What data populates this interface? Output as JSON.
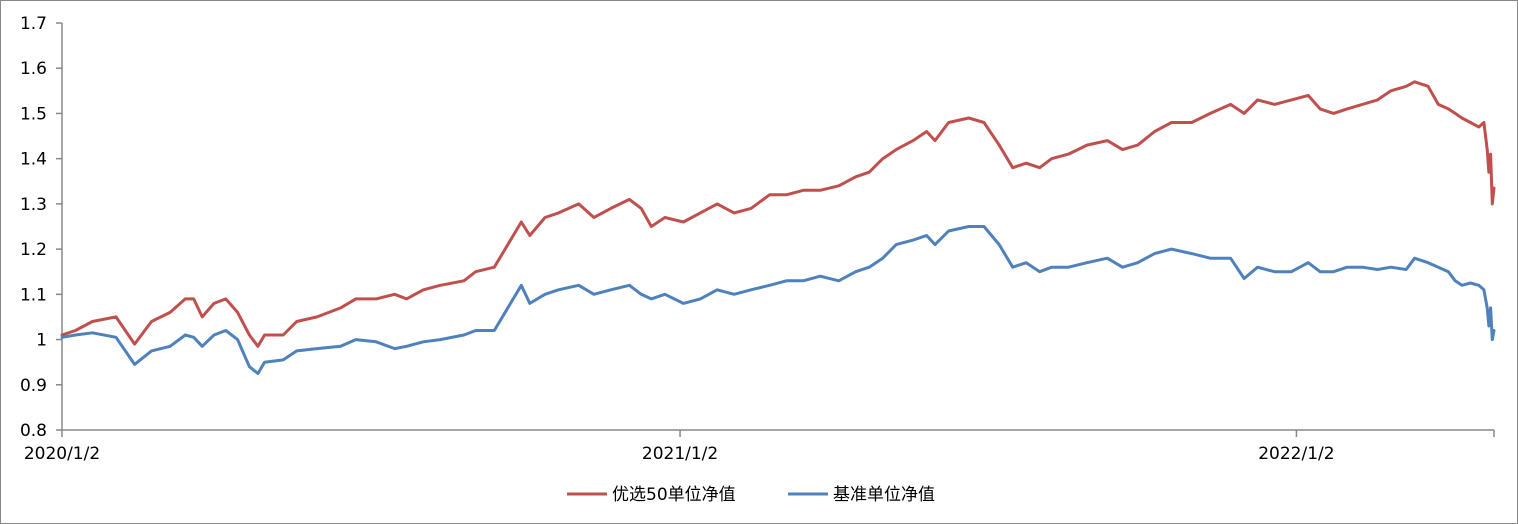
{
  "chart_data": {
    "type": "line",
    "title": "",
    "xlabel": "",
    "ylabel": "",
    "ylim": [
      0.8,
      1.7
    ],
    "y_ticks": [
      "0.8",
      "0.9",
      "1",
      "1.1",
      "1.2",
      "1.3",
      "1.4",
      "1.5",
      "1.6",
      "1.7"
    ],
    "x_ticks": [
      {
        "label": "2020/1/2",
        "date": "2020-01-02"
      },
      {
        "label": "2021/1/2",
        "date": "2021-01-02"
      },
      {
        "label": "2022/1/2",
        "date": "2022-01-02"
      }
    ],
    "xlim": [
      "2020-01-02",
      "2022-04-29"
    ],
    "grid": false,
    "legend_position": "bottom",
    "series": [
      {
        "name": "优选50单位净值",
        "color": "#C0504D",
        "points": [
          [
            "2020-01-02",
            1.01
          ],
          [
            "2020-01-10",
            1.02
          ],
          [
            "2020-01-20",
            1.04
          ],
          [
            "2020-02-03",
            1.05
          ],
          [
            "2020-02-14",
            0.99
          ],
          [
            "2020-02-24",
            1.04
          ],
          [
            "2020-03-06",
            1.06
          ],
          [
            "2020-03-15",
            1.09
          ],
          [
            "2020-03-20",
            1.09
          ],
          [
            "2020-03-25",
            1.05
          ],
          [
            "2020-04-01",
            1.08
          ],
          [
            "2020-04-08",
            1.09
          ],
          [
            "2020-04-15",
            1.06
          ],
          [
            "2020-04-22",
            1.01
          ],
          [
            "2020-04-27",
            0.985
          ],
          [
            "2020-05-01",
            1.01
          ],
          [
            "2020-05-12",
            1.01
          ],
          [
            "2020-05-20",
            1.04
          ],
          [
            "2020-06-01",
            1.05
          ],
          [
            "2020-06-15",
            1.07
          ],
          [
            "2020-06-24",
            1.09
          ],
          [
            "2020-07-06",
            1.09
          ],
          [
            "2020-07-17",
            1.1
          ],
          [
            "2020-07-24",
            1.09
          ],
          [
            "2020-08-03",
            1.11
          ],
          [
            "2020-08-13",
            1.12
          ],
          [
            "2020-08-27",
            1.13
          ],
          [
            "2020-09-03",
            1.15
          ],
          [
            "2020-09-14",
            1.16
          ],
          [
            "2020-09-22",
            1.21
          ],
          [
            "2020-09-30",
            1.26
          ],
          [
            "2020-10-05",
            1.23
          ],
          [
            "2020-10-14",
            1.27
          ],
          [
            "2020-10-22",
            1.28
          ],
          [
            "2020-11-03",
            1.3
          ],
          [
            "2020-11-12",
            1.27
          ],
          [
            "2020-11-22",
            1.29
          ],
          [
            "2020-12-03",
            1.31
          ],
          [
            "2020-12-10",
            1.29
          ],
          [
            "2020-12-16",
            1.25
          ],
          [
            "2020-12-24",
            1.27
          ],
          [
            "2021-01-04",
            1.26
          ],
          [
            "2021-01-14",
            1.28
          ],
          [
            "2021-01-24",
            1.3
          ],
          [
            "2021-02-03",
            1.28
          ],
          [
            "2021-02-13",
            1.29
          ],
          [
            "2021-02-24",
            1.32
          ],
          [
            "2021-03-06",
            1.32
          ],
          [
            "2021-03-16",
            1.33
          ],
          [
            "2021-03-26",
            1.33
          ],
          [
            "2021-04-06",
            1.34
          ],
          [
            "2021-04-16",
            1.36
          ],
          [
            "2021-04-24",
            1.37
          ],
          [
            "2021-05-02",
            1.4
          ],
          [
            "2021-05-10",
            1.42
          ],
          [
            "2021-05-20",
            1.44
          ],
          [
            "2021-05-28",
            1.46
          ],
          [
            "2021-06-02",
            1.44
          ],
          [
            "2021-06-10",
            1.48
          ],
          [
            "2021-06-22",
            1.49
          ],
          [
            "2021-07-01",
            1.48
          ],
          [
            "2021-07-10",
            1.43
          ],
          [
            "2021-07-18",
            1.38
          ],
          [
            "2021-07-26",
            1.39
          ],
          [
            "2021-08-03",
            1.38
          ],
          [
            "2021-08-10",
            1.4
          ],
          [
            "2021-08-20",
            1.41
          ],
          [
            "2021-08-31",
            1.43
          ],
          [
            "2021-09-12",
            1.44
          ],
          [
            "2021-09-21",
            1.42
          ],
          [
            "2021-09-30",
            1.43
          ],
          [
            "2021-10-10",
            1.46
          ],
          [
            "2021-10-20",
            1.48
          ],
          [
            "2021-11-01",
            1.48
          ],
          [
            "2021-11-12",
            1.5
          ],
          [
            "2021-11-24",
            1.52
          ],
          [
            "2021-12-02",
            1.5
          ],
          [
            "2021-12-10",
            1.53
          ],
          [
            "2021-12-20",
            1.52
          ],
          [
            "2021-12-30",
            1.53
          ],
          [
            "2022-01-09",
            1.54
          ],
          [
            "2022-01-16",
            1.51
          ],
          [
            "2022-01-24",
            1.5
          ],
          [
            "2022-02-01",
            1.51
          ],
          [
            "2022-02-10",
            1.52
          ],
          [
            "2022-02-19",
            1.53
          ],
          [
            "2022-02-27",
            1.55
          ],
          [
            "2022-03-08",
            1.56
          ],
          [
            "2022-03-13",
            1.57
          ],
          [
            "2022-03-21",
            1.56
          ],
          [
            "2022-03-27",
            1.52
          ],
          [
            "2022-04-02",
            1.51
          ],
          [
            "2022-04-06",
            1.5
          ],
          [
            "2022-04-10",
            1.49
          ],
          [
            "2022-04-15",
            1.48
          ],
          [
            "2022-04-20",
            1.47
          ],
          [
            "2022-04-23",
            1.48
          ],
          [
            "2022-04-25",
            1.42
          ],
          [
            "2022-04-26",
            1.37
          ],
          [
            "2022-04-27",
            1.41
          ],
          [
            "2022-04-28",
            1.3
          ],
          [
            "2022-04-29",
            1.335
          ]
        ]
      },
      {
        "name": "基准单位净值",
        "color": "#4F81BD",
        "points": [
          [
            "2020-01-02",
            1.005
          ],
          [
            "2020-01-10",
            1.01
          ],
          [
            "2020-01-20",
            1.015
          ],
          [
            "2020-02-03",
            1.005
          ],
          [
            "2020-02-14",
            0.945
          ],
          [
            "2020-02-24",
            0.975
          ],
          [
            "2020-03-06",
            0.985
          ],
          [
            "2020-03-15",
            1.01
          ],
          [
            "2020-03-20",
            1.005
          ],
          [
            "2020-03-25",
            0.985
          ],
          [
            "2020-04-01",
            1.01
          ],
          [
            "2020-04-08",
            1.02
          ],
          [
            "2020-04-15",
            1.0
          ],
          [
            "2020-04-22",
            0.94
          ],
          [
            "2020-04-27",
            0.925
          ],
          [
            "2020-05-01",
            0.95
          ],
          [
            "2020-05-12",
            0.955
          ],
          [
            "2020-05-20",
            0.975
          ],
          [
            "2020-06-01",
            0.98
          ],
          [
            "2020-06-15",
            0.985
          ],
          [
            "2020-06-24",
            1.0
          ],
          [
            "2020-07-06",
            0.995
          ],
          [
            "2020-07-17",
            0.98
          ],
          [
            "2020-07-24",
            0.985
          ],
          [
            "2020-08-03",
            0.995
          ],
          [
            "2020-08-13",
            1.0
          ],
          [
            "2020-08-27",
            1.01
          ],
          [
            "2020-09-03",
            1.02
          ],
          [
            "2020-09-14",
            1.02
          ],
          [
            "2020-09-22",
            1.07
          ],
          [
            "2020-09-30",
            1.12
          ],
          [
            "2020-10-05",
            1.08
          ],
          [
            "2020-10-14",
            1.1
          ],
          [
            "2020-10-22",
            1.11
          ],
          [
            "2020-11-03",
            1.12
          ],
          [
            "2020-11-12",
            1.1
          ],
          [
            "2020-11-22",
            1.11
          ],
          [
            "2020-12-03",
            1.12
          ],
          [
            "2020-12-10",
            1.1
          ],
          [
            "2020-12-16",
            1.09
          ],
          [
            "2020-12-24",
            1.1
          ],
          [
            "2021-01-04",
            1.08
          ],
          [
            "2021-01-14",
            1.09
          ],
          [
            "2021-01-24",
            1.11
          ],
          [
            "2021-02-03",
            1.1
          ],
          [
            "2021-02-13",
            1.11
          ],
          [
            "2021-02-24",
            1.12
          ],
          [
            "2021-03-06",
            1.13
          ],
          [
            "2021-03-16",
            1.13
          ],
          [
            "2021-03-26",
            1.14
          ],
          [
            "2021-04-06",
            1.13
          ],
          [
            "2021-04-16",
            1.15
          ],
          [
            "2021-04-24",
            1.16
          ],
          [
            "2021-05-02",
            1.18
          ],
          [
            "2021-05-10",
            1.21
          ],
          [
            "2021-05-20",
            1.22
          ],
          [
            "2021-05-28",
            1.23
          ],
          [
            "2021-06-02",
            1.21
          ],
          [
            "2021-06-10",
            1.24
          ],
          [
            "2021-06-22",
            1.25
          ],
          [
            "2021-07-01",
            1.25
          ],
          [
            "2021-07-10",
            1.21
          ],
          [
            "2021-07-18",
            1.16
          ],
          [
            "2021-07-26",
            1.17
          ],
          [
            "2021-08-03",
            1.15
          ],
          [
            "2021-08-10",
            1.16
          ],
          [
            "2021-08-20",
            1.16
          ],
          [
            "2021-08-31",
            1.17
          ],
          [
            "2021-09-12",
            1.18
          ],
          [
            "2021-09-21",
            1.16
          ],
          [
            "2021-09-30",
            1.17
          ],
          [
            "2021-10-10",
            1.19
          ],
          [
            "2021-10-20",
            1.2
          ],
          [
            "2021-11-01",
            1.19
          ],
          [
            "2021-11-12",
            1.18
          ],
          [
            "2021-11-24",
            1.18
          ],
          [
            "2021-12-02",
            1.135
          ],
          [
            "2021-12-10",
            1.16
          ],
          [
            "2021-12-20",
            1.15
          ],
          [
            "2021-12-30",
            1.15
          ],
          [
            "2022-01-09",
            1.17
          ],
          [
            "2022-01-16",
            1.15
          ],
          [
            "2022-01-24",
            1.15
          ],
          [
            "2022-02-01",
            1.16
          ],
          [
            "2022-02-10",
            1.16
          ],
          [
            "2022-02-19",
            1.155
          ],
          [
            "2022-02-27",
            1.16
          ],
          [
            "2022-03-08",
            1.155
          ],
          [
            "2022-03-13",
            1.18
          ],
          [
            "2022-03-21",
            1.17
          ],
          [
            "2022-03-27",
            1.16
          ],
          [
            "2022-04-02",
            1.15
          ],
          [
            "2022-04-06",
            1.13
          ],
          [
            "2022-04-10",
            1.12
          ],
          [
            "2022-04-15",
            1.125
          ],
          [
            "2022-04-20",
            1.12
          ],
          [
            "2022-04-23",
            1.11
          ],
          [
            "2022-04-25",
            1.07
          ],
          [
            "2022-04-26",
            1.03
          ],
          [
            "2022-04-27",
            1.07
          ],
          [
            "2022-04-28",
            1.0
          ],
          [
            "2022-04-29",
            1.02
          ]
        ]
      }
    ]
  }
}
